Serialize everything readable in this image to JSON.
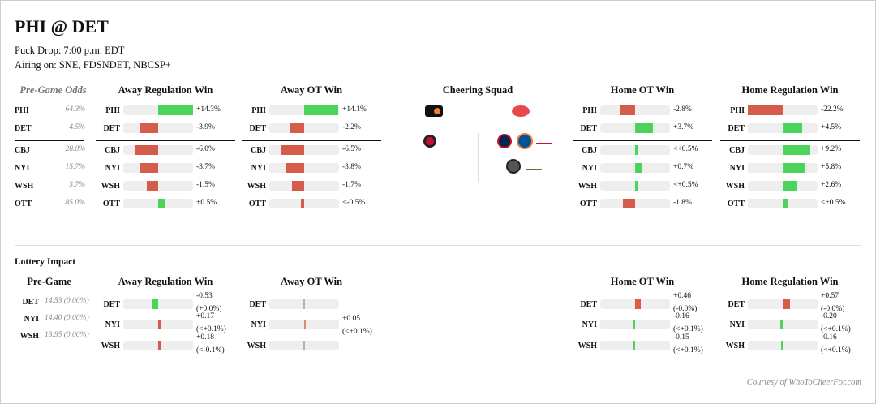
{
  "header": {
    "title": "PHI @ DET",
    "puck_drop": "Puck Drop: 7:00 p.m. EDT",
    "airing": "Airing on: SNE, FDSNDET, NBCSP+"
  },
  "colors": {
    "positive": "#4cd45a",
    "negative": "#d55c4a",
    "track": "#eeeeee",
    "neutral": "#999999"
  },
  "pregame": {
    "title": "Pre-Game Odds",
    "rows": [
      {
        "team": "PHI",
        "odds": "64.3%"
      },
      {
        "team": "DET",
        "odds": "4.5%"
      },
      {
        "team": "CBJ",
        "odds": "28.0%"
      },
      {
        "team": "NYI",
        "odds": "15.7%"
      },
      {
        "team": "WSH",
        "odds": "3.7%"
      },
      {
        "team": "OTT",
        "odds": "85.0%"
      }
    ]
  },
  "tables": [
    {
      "title": "Away Regulation Win",
      "rows": [
        {
          "team": "PHI",
          "value": 14.3,
          "text": "+14.3%"
        },
        {
          "team": "DET",
          "value": -3.9,
          "text": "-3.9%"
        },
        {
          "team": "CBJ",
          "value": -6.0,
          "text": "-6.0%"
        },
        {
          "team": "NYI",
          "value": -3.7,
          "text": "-3.7%"
        },
        {
          "team": "WSH",
          "value": -1.5,
          "text": "-1.5%"
        },
        {
          "team": "OTT",
          "value": 0.5,
          "text": "+0.5%"
        }
      ]
    },
    {
      "title": "Away OT Win",
      "rows": [
        {
          "team": "PHI",
          "value": 14.1,
          "text": "+14.1%"
        },
        {
          "team": "DET",
          "value": -2.2,
          "text": "-2.2%"
        },
        {
          "team": "CBJ",
          "value": -6.5,
          "text": "-6.5%"
        },
        {
          "team": "NYI",
          "value": -3.8,
          "text": "-3.8%"
        },
        {
          "team": "WSH",
          "value": -1.7,
          "text": "-1.7%"
        },
        {
          "team": "OTT",
          "value": -0.1,
          "text": "<-0.5%"
        }
      ]
    },
    {
      "title": "Home OT Win",
      "rows": [
        {
          "team": "PHI",
          "value": -2.8,
          "text": "-2.8%"
        },
        {
          "team": "DET",
          "value": 3.7,
          "text": "+3.7%"
        },
        {
          "team": "CBJ",
          "value": 0.1,
          "text": "<+0.5%"
        },
        {
          "team": "NYI",
          "value": 0.7,
          "text": "+0.7%"
        },
        {
          "team": "WSH",
          "value": 0.1,
          "text": "<+0.5%"
        },
        {
          "team": "OTT",
          "value": -1.8,
          "text": "-1.8%"
        }
      ]
    },
    {
      "title": "Home Regulation Win",
      "rows": [
        {
          "team": "PHI",
          "value": -22.2,
          "text": "-22.2%"
        },
        {
          "team": "DET",
          "value": 4.5,
          "text": "+4.5%"
        },
        {
          "team": "CBJ",
          "value": 9.2,
          "text": "+9.2%"
        },
        {
          "team": "NYI",
          "value": 5.8,
          "text": "+5.8%"
        },
        {
          "team": "WSH",
          "value": 2.6,
          "text": "+2.6%"
        },
        {
          "team": "OTT",
          "value": 0.3,
          "text": "<+0.5%"
        }
      ]
    }
  ],
  "cheering": {
    "title": "Cheering Squad",
    "top": [
      "flyers-logo",
      "red-wings-logo"
    ],
    "left": [
      "senators-logo"
    ],
    "right": [
      "blue-jackets-logo",
      "islanders-logo",
      "capitals-logo",
      "islanders-alt-logo",
      "capitals-alt-logo"
    ]
  },
  "lottery": {
    "title": "Lottery Impact",
    "pregame_title": "Pre-Game",
    "pregame": [
      {
        "team": "DET",
        "text": "14.53 (0.00%)"
      },
      {
        "team": "NYI",
        "text": "14.40 (0.00%)"
      },
      {
        "team": "WSH",
        "text": "13.95 (0.00%)"
      }
    ],
    "tables": [
      {
        "title": "Away Regulation Win",
        "rows": [
          {
            "team": "DET",
            "value": -0.53,
            "line1": "-0.53",
            "line2": "(+0.0%)"
          },
          {
            "team": "NYI",
            "value": 0.17,
            "line1": "+0.17",
            "line2": "(<+0.1%)"
          },
          {
            "team": "WSH",
            "value": 0.18,
            "line1": "+0.18",
            "line2": "(<-0.1%)"
          }
        ]
      },
      {
        "title": "Away OT Win",
        "rows": [
          {
            "team": "DET",
            "value": 0
          },
          {
            "team": "NYI",
            "value": 0.05,
            "line1": "+0.05",
            "line2": "(<+0.1%)"
          },
          {
            "team": "WSH",
            "value": 0
          }
        ]
      },
      {
        "title": "Home OT Win",
        "rows": [
          {
            "team": "DET",
            "value": 0.46,
            "line1": "+0.46",
            "line2": "(-0.0%)"
          },
          {
            "team": "NYI",
            "value": -0.16,
            "line1": "-0.16",
            "line2": "(<+0.1%)"
          },
          {
            "team": "WSH",
            "value": -0.15,
            "line1": "-0.15",
            "line2": "(<+0.1%)"
          }
        ]
      },
      {
        "title": "Home Regulation Win",
        "rows": [
          {
            "team": "DET",
            "value": 0.57,
            "line1": "+0.57",
            "line2": "(-0.0%)"
          },
          {
            "team": "NYI",
            "value": -0.2,
            "line1": "-0.20",
            "line2": "(<+0.1%)"
          },
          {
            "team": "WSH",
            "value": -0.16,
            "line1": "-0.16",
            "line2": "(<+0.1%)"
          }
        ]
      }
    ]
  },
  "footer": {
    "credit": "Courtesy of WhoToCheerFor.com"
  }
}
